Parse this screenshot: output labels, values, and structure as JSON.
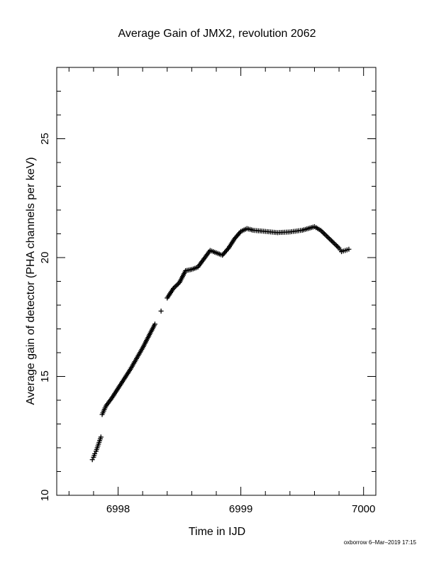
{
  "chart_data": {
    "type": "scatter",
    "title": "Average Gain of JMX2, revolution 2062",
    "xlabel": "Time in IJD",
    "ylabel": "Average gain of detector (PHA channels per keV)",
    "xlim": [
      6997.5,
      7000.1
    ],
    "ylim": [
      10,
      28
    ],
    "xticks": [
      6998,
      6999,
      7000
    ],
    "xtick_labels": [
      "6998",
      "6999",
      "7000"
    ],
    "yticks": [
      10,
      15,
      20,
      25
    ],
    "ytick_labels": [
      "10",
      "15",
      "20",
      "25"
    ],
    "marker": "plus",
    "grid": false,
    "series": [
      {
        "points": [
          [
            6997.79,
            11.5
          ],
          [
            6997.8,
            11.6
          ],
          [
            6997.81,
            11.75
          ],
          [
            6997.82,
            11.85
          ],
          [
            6997.83,
            12.0
          ],
          [
            6997.84,
            12.15
          ],
          [
            6997.85,
            12.3
          ],
          [
            6997.86,
            12.45
          ],
          [
            6997.87,
            13.4
          ],
          [
            6997.9,
            13.75
          ],
          [
            6997.95,
            14.1
          ],
          [
            6998.0,
            14.5
          ],
          [
            6998.05,
            14.9
          ],
          [
            6998.1,
            15.3
          ],
          [
            6998.15,
            15.75
          ],
          [
            6998.2,
            16.2
          ],
          [
            6998.25,
            16.7
          ],
          [
            6998.3,
            17.2
          ],
          [
            6998.35,
            17.75
          ],
          [
            6998.4,
            18.3
          ],
          [
            6998.45,
            18.7
          ],
          [
            6998.5,
            18.95
          ],
          [
            6998.55,
            19.45
          ],
          [
            6998.6,
            19.5
          ],
          [
            6998.65,
            19.6
          ],
          [
            6998.7,
            19.95
          ],
          [
            6998.75,
            20.3
          ],
          [
            6998.8,
            20.2
          ],
          [
            6998.85,
            20.1
          ],
          [
            6998.9,
            20.4
          ],
          [
            6998.95,
            20.8
          ],
          [
            6999.0,
            21.1
          ],
          [
            6999.05,
            21.22
          ],
          [
            6999.1,
            21.15
          ],
          [
            6999.2,
            21.1
          ],
          [
            6999.3,
            21.05
          ],
          [
            6999.4,
            21.08
          ],
          [
            6999.5,
            21.15
          ],
          [
            6999.6,
            21.3
          ],
          [
            6999.65,
            21.15
          ],
          [
            6999.7,
            20.9
          ],
          [
            6999.75,
            20.65
          ],
          [
            6999.8,
            20.4
          ],
          [
            6999.82,
            20.25
          ],
          [
            6999.85,
            20.3
          ],
          [
            6999.88,
            20.35
          ]
        ]
      }
    ]
  },
  "footer": {
    "credit": "oxborrow  6–Mar–2019 17:15"
  }
}
